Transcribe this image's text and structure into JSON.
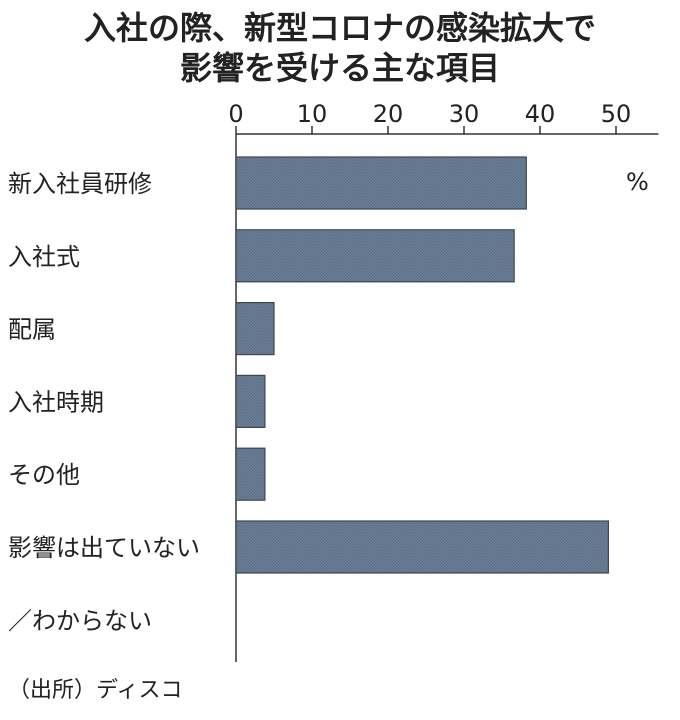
{
  "title_lines": [
    "入社の際、新型コロナの感染拡大で",
    "影響を受ける主な項目"
  ],
  "unit": "%",
  "source": "（出所）ディスコ",
  "colors": {
    "bar_fill": "#6a7f96",
    "bar_stroke": "#3a4656",
    "axis": "#333333",
    "text": "#222222"
  },
  "chart_data": {
    "type": "bar",
    "orientation": "horizontal",
    "title": "入社の際、新型コロナの感染拡大で影響を受ける主な項目",
    "categories": [
      "新入社員研修",
      "入社式",
      "配属",
      "入社時期",
      "その他",
      "影響は出ていない",
      "／わからない"
    ],
    "values": [
      38.2,
      36.6,
      5.0,
      3.8,
      3.8,
      49.0,
      null
    ],
    "xlim": [
      0,
      54
    ],
    "xticks": [
      0,
      10,
      20,
      30,
      40,
      50
    ],
    "xtick_labels": [
      "0",
      "10",
      "20",
      "30",
      "40",
      "50"
    ],
    "axis_position": "top",
    "grid": false,
    "legend": "none"
  }
}
